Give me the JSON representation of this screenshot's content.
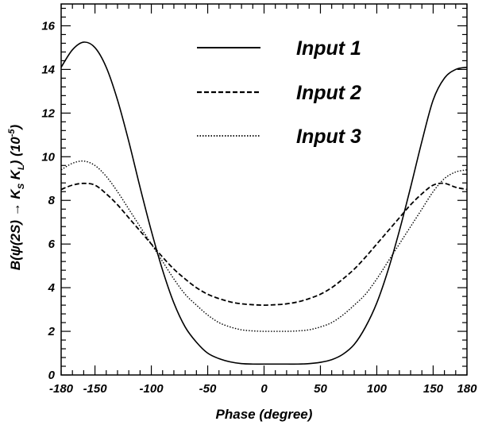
{
  "chart_data": {
    "type": "line",
    "xlabel": "Phase (degree)",
    "ylabel_parts": {
      "main": "B(ψ(2S) → K",
      "sub1": "S",
      "mid": " K",
      "sub2": "L",
      "close": ") (10",
      "exp": "-5",
      "end": ")"
    },
    "xlim": [
      -180,
      180
    ],
    "ylim": [
      0,
      17
    ],
    "xticks": [
      -180,
      -150,
      -100,
      -50,
      0,
      50,
      100,
      150,
      180
    ],
    "yticks": [
      0,
      2,
      4,
      6,
      8,
      10,
      12,
      14,
      16
    ],
    "x": [
      -180,
      -170,
      -160,
      -150,
      -140,
      -130,
      -120,
      -110,
      -100,
      -90,
      -80,
      -70,
      -60,
      -50,
      -40,
      -30,
      -20,
      -10,
      0,
      10,
      20,
      30,
      40,
      50,
      60,
      70,
      80,
      90,
      100,
      110,
      120,
      130,
      140,
      150,
      160,
      170,
      180
    ],
    "series": [
      {
        "name": "Input 1",
        "style": "solid",
        "values": [
          14.1,
          14.9,
          15.25,
          15.0,
          14.1,
          12.6,
          10.7,
          8.6,
          6.6,
          4.8,
          3.3,
          2.2,
          1.5,
          1.0,
          0.75,
          0.6,
          0.52,
          0.5,
          0.5,
          0.5,
          0.5,
          0.5,
          0.52,
          0.58,
          0.7,
          0.95,
          1.4,
          2.2,
          3.3,
          4.8,
          6.6,
          8.6,
          10.7,
          12.6,
          13.6,
          14.0,
          14.1
        ]
      },
      {
        "name": "Input 2",
        "style": "dashed",
        "values": [
          8.5,
          8.7,
          8.78,
          8.7,
          8.3,
          7.8,
          7.2,
          6.6,
          6.0,
          5.4,
          4.85,
          4.4,
          4.0,
          3.7,
          3.5,
          3.35,
          3.26,
          3.22,
          3.2,
          3.22,
          3.26,
          3.35,
          3.5,
          3.7,
          4.0,
          4.4,
          4.85,
          5.4,
          6.0,
          6.6,
          7.2,
          7.8,
          8.3,
          8.7,
          8.78,
          8.6,
          8.5
        ]
      },
      {
        "name": "Input 3",
        "style": "dotted",
        "values": [
          9.4,
          9.7,
          9.8,
          9.6,
          9.1,
          8.4,
          7.6,
          6.8,
          6.0,
          5.2,
          4.4,
          3.7,
          3.2,
          2.75,
          2.4,
          2.2,
          2.07,
          2.02,
          2.0,
          2.0,
          2.0,
          2.02,
          2.07,
          2.2,
          2.4,
          2.75,
          3.2,
          3.7,
          4.4,
          5.2,
          6.0,
          6.8,
          7.6,
          8.4,
          9.0,
          9.3,
          9.4
        ]
      }
    ],
    "legend_position": "top-right"
  }
}
